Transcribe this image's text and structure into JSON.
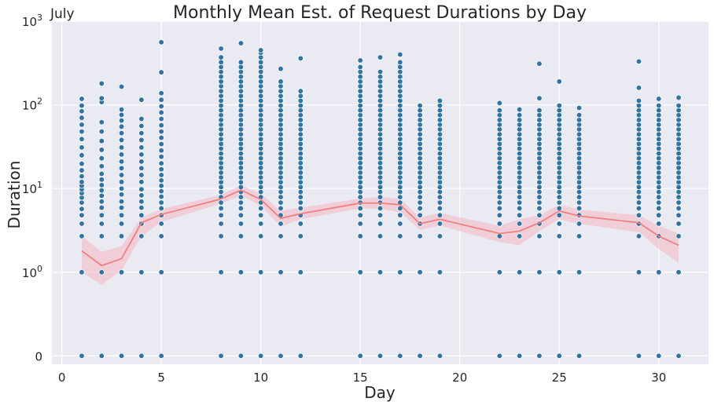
{
  "chart_data": {
    "type": "scatter",
    "title": "Monthly Mean Est. of Request Durations by Day",
    "month_label": "July",
    "xlabel": "Day",
    "ylabel": "Duration",
    "x_scale": "linear",
    "y_scale": "symlog",
    "xlim": [
      -0.5,
      32.5
    ],
    "ylim": [
      -0.1,
      1000
    ],
    "grid": true,
    "colors": {
      "background": "#EAEAF2",
      "grid": "#FFFFFF",
      "points": "#3274A1",
      "point_edge": "#FFFFFF",
      "mean_line": "#F08080",
      "ci_band": "#F4B6C2"
    },
    "x_ticks": [
      {
        "value": 0,
        "label": "0"
      },
      {
        "value": 5,
        "label": "5"
      },
      {
        "value": 10,
        "label": "10"
      },
      {
        "value": 15,
        "label": "15"
      },
      {
        "value": 20,
        "label": "20"
      },
      {
        "value": 25,
        "label": "25"
      },
      {
        "value": 30,
        "label": "30"
      }
    ],
    "y_ticks": [
      {
        "value": 0,
        "base": "0",
        "exp": ""
      },
      {
        "value": 1,
        "base": "10",
        "exp": "0"
      },
      {
        "value": 10,
        "base": "10",
        "exp": "1"
      },
      {
        "value": 100,
        "base": "10",
        "exp": "2"
      },
      {
        "value": 1000,
        "base": "10",
        "exp": "3"
      }
    ],
    "points_by_day": [
      {
        "day": 1,
        "values": [
          0,
          1,
          2.7,
          3.8,
          4.8,
          5.7,
          6.8,
          7.8,
          8.8,
          9.8,
          10.8,
          12,
          14,
          16.5,
          19.8,
          25,
          31,
          39,
          48,
          58,
          70,
          84,
          98,
          118
        ]
      },
      {
        "day": 2,
        "values": [
          0,
          1,
          2.7,
          3.8,
          4.8,
          5.9,
          7,
          8.2,
          9.5,
          11,
          12.8,
          15,
          18.5,
          23,
          29,
          37,
          48,
          62,
          108,
          120,
          180
        ]
      },
      {
        "day": 3,
        "values": [
          0,
          1,
          2.7,
          3.8,
          4.8,
          5.9,
          7,
          8.5,
          10,
          12,
          14.5,
          17.5,
          21,
          25.5,
          31,
          38,
          46,
          55,
          65,
          76,
          88,
          165
        ]
      },
      {
        "day": 4,
        "values": [
          0,
          1,
          2.7,
          3.8,
          4.8,
          5.9,
          7,
          8.3,
          9.8,
          12,
          14.5,
          17.5,
          21,
          25.5,
          31,
          38,
          46,
          56,
          68,
          115
        ]
      },
      {
        "day": 5,
        "values": [
          0,
          1,
          2.7,
          3.8,
          4.8,
          5.8,
          6.8,
          8,
          9.3,
          10.8,
          12.5,
          14.5,
          17,
          20,
          24,
          28.5,
          34,
          40.5,
          48,
          57,
          68,
          81,
          96,
          115,
          138,
          245,
          560
        ]
      },
      {
        "day": 8,
        "values": [
          0,
          1,
          2.7,
          3.8,
          4.8,
          5.8,
          6.8,
          7.9,
          9.1,
          10.4,
          11.9,
          13.6,
          15.5,
          17.7,
          20.2,
          23,
          26.2,
          30,
          34.2,
          39,
          44.5,
          51,
          58,
          66,
          75.5,
          86,
          98,
          112,
          128,
          146,
          167,
          190,
          217,
          248,
          283,
          323,
          370,
          470
        ]
      },
      {
        "day": 9,
        "values": [
          0,
          1,
          2.7,
          3.8,
          4.8,
          5.8,
          6.8,
          7.9,
          9.1,
          10.4,
          11.9,
          13.6,
          15.5,
          17.7,
          20.2,
          23,
          26.2,
          30,
          34.2,
          39,
          44.5,
          51,
          58,
          66,
          75.5,
          86,
          98,
          112,
          128,
          146,
          167,
          190,
          217,
          248,
          283,
          323,
          545
        ]
      },
      {
        "day": 10,
        "values": [
          0,
          1,
          2.7,
          3.8,
          4.8,
          5.8,
          6.8,
          7.9,
          9.1,
          10.4,
          11.9,
          13.6,
          15.5,
          17.7,
          20.2,
          23,
          26.2,
          30,
          34.2,
          39,
          44.5,
          51,
          58,
          66,
          75.5,
          86,
          98,
          112,
          128,
          146,
          167,
          190,
          217,
          248,
          283,
          323,
          370,
          420,
          450
        ]
      },
      {
        "day": 11,
        "values": [
          0,
          1,
          2.7,
          3.8,
          4.8,
          5.8,
          6.8,
          7.9,
          9.1,
          10.4,
          11.9,
          13.6,
          15.5,
          17.7,
          20.2,
          23,
          26.2,
          30,
          34.2,
          39,
          44.5,
          51,
          58,
          66,
          75.5,
          86,
          98,
          112,
          128,
          146,
          167,
          190,
          270
        ]
      },
      {
        "day": 12,
        "values": [
          0,
          1,
          2.7,
          3.8,
          4.8,
          5.8,
          6.8,
          7.9,
          9.1,
          10.4,
          11.9,
          13.6,
          15.5,
          17.7,
          20.2,
          23,
          26.2,
          30,
          34.2,
          39,
          44.5,
          51,
          58,
          66,
          75.5,
          86,
          98,
          112,
          128,
          146,
          360
        ]
      },
      {
        "day": 15,
        "values": [
          0,
          1,
          2.7,
          3.8,
          4.8,
          5.8,
          6.8,
          7.9,
          9.1,
          10.4,
          11.9,
          13.6,
          15.5,
          17.7,
          20.2,
          23,
          26.2,
          30,
          34.2,
          39,
          44.5,
          51,
          58,
          66,
          75.5,
          86,
          98,
          112,
          128,
          146,
          167,
          190,
          217,
          248,
          283,
          340
        ]
      },
      {
        "day": 16,
        "values": [
          0,
          1,
          2.7,
          3.8,
          4.8,
          5.8,
          6.8,
          7.9,
          9.1,
          10.4,
          11.9,
          13.6,
          15.5,
          17.7,
          20.2,
          23,
          26.2,
          30,
          34.2,
          39,
          44.5,
          51,
          58,
          66,
          75.5,
          86,
          98,
          112,
          128,
          146,
          167,
          190,
          217,
          248,
          370
        ]
      },
      {
        "day": 17,
        "values": [
          0,
          1,
          2.7,
          3.8,
          4.8,
          5.8,
          6.8,
          7.9,
          9.1,
          10.4,
          11.9,
          13.6,
          15.5,
          17.7,
          20.2,
          23,
          26.2,
          30,
          34.2,
          39,
          44.5,
          51,
          58,
          66,
          75.5,
          86,
          98,
          112,
          128,
          146,
          167,
          190,
          217,
          248,
          283,
          323,
          400
        ]
      },
      {
        "day": 18,
        "values": [
          0,
          1,
          2.7,
          3.8,
          4.8,
          5.8,
          6.8,
          7.9,
          9.1,
          10.4,
          11.9,
          13.6,
          15.5,
          17.7,
          20.2,
          23,
          26.2,
          30,
          34.2,
          39,
          44.5,
          51,
          58,
          66,
          75.5,
          86,
          98
        ]
      },
      {
        "day": 19,
        "values": [
          0,
          1,
          2.7,
          3.8,
          4.8,
          5.8,
          6.8,
          7.9,
          9.1,
          10.4,
          11.9,
          13.6,
          15.5,
          17.7,
          20.2,
          23,
          26.2,
          30,
          34.2,
          39,
          44.5,
          51,
          58,
          66,
          75.5,
          86,
          98,
          112
        ]
      },
      {
        "day": 22,
        "values": [
          0,
          1,
          2.7,
          3.8,
          4.8,
          5.8,
          6.8,
          7.9,
          9.1,
          10.4,
          11.9,
          13.6,
          15.5,
          17.7,
          20.2,
          23,
          26.2,
          30,
          34.2,
          39,
          44.5,
          51,
          58,
          66,
          75.5,
          86,
          105
        ]
      },
      {
        "day": 23,
        "values": [
          0,
          1,
          2.7,
          3.8,
          4.8,
          5.8,
          6.8,
          7.9,
          9.1,
          10.4,
          11.9,
          13.6,
          15.5,
          17.7,
          20.2,
          23,
          26.2,
          30,
          34.2,
          39,
          44.5,
          51,
          58,
          66,
          75.5,
          88
        ]
      },
      {
        "day": 24,
        "values": [
          0,
          1,
          2.7,
          3.8,
          4.8,
          5.8,
          6.8,
          7.9,
          9.1,
          10.4,
          11.9,
          13.6,
          15.5,
          17.7,
          20.2,
          23,
          26.2,
          30,
          34.2,
          39,
          44.5,
          51,
          58,
          66,
          75.5,
          86,
          120,
          310
        ]
      },
      {
        "day": 25,
        "values": [
          0,
          1,
          2.7,
          3.8,
          4.8,
          5.8,
          6.8,
          7.9,
          9.1,
          10.4,
          11.9,
          13.6,
          15.5,
          17.7,
          20.2,
          23,
          26.2,
          30,
          34.2,
          39,
          44.5,
          51,
          58,
          66,
          75.5,
          86,
          98,
          190
        ]
      },
      {
        "day": 26,
        "values": [
          0,
          1,
          2.7,
          3.8,
          4.8,
          5.8,
          6.8,
          7.9,
          9.1,
          10.4,
          11.9,
          13.6,
          15.5,
          17.7,
          20.2,
          23,
          26.2,
          30,
          34.2,
          39,
          44.5,
          51,
          58,
          66,
          75.5,
          92
        ]
      },
      {
        "day": 29,
        "values": [
          0,
          1,
          2.7,
          3.8,
          4.8,
          5.8,
          6.8,
          7.9,
          9.1,
          10.4,
          11.9,
          13.6,
          15.5,
          17.7,
          20.2,
          23,
          26.2,
          30,
          34.2,
          39,
          44.5,
          51,
          58,
          66,
          75.5,
          86,
          98,
          112,
          160,
          330
        ]
      },
      {
        "day": 30,
        "values": [
          0,
          1,
          2.7,
          3.8,
          4.8,
          5.8,
          6.8,
          7.9,
          9.1,
          10.4,
          11.9,
          13.6,
          15.5,
          17.7,
          20.2,
          23,
          26.2,
          30,
          34.2,
          39,
          44.5,
          51,
          58,
          66,
          75.5,
          86,
          98,
          118
        ]
      },
      {
        "day": 31,
        "values": [
          0,
          1,
          2.7,
          3.8,
          4.8,
          5.8,
          6.8,
          7.9,
          9.1,
          10.4,
          11.9,
          13.6,
          15.5,
          17.7,
          20.2,
          23,
          26.2,
          30,
          34.2,
          39,
          44.5,
          51,
          58,
          66,
          75.5,
          86,
          98,
          122
        ]
      }
    ],
    "mean_series": {
      "x": [
        1,
        2,
        3,
        4,
        5,
        8,
        9,
        10,
        11,
        12,
        15,
        16,
        17,
        18,
        19,
        22,
        23,
        24,
        25,
        26,
        29,
        30,
        31
      ],
      "y": [
        1.8,
        1.2,
        1.45,
        3.9,
        4.9,
        7.5,
        9.6,
        7.4,
        4.4,
        5.0,
        6.7,
        6.7,
        6.4,
        3.8,
        4.3,
        2.9,
        3.1,
        3.9,
        5.4,
        4.7,
        3.9,
        2.7,
        2.1
      ],
      "ci_low": [
        1.0,
        0.85,
        1.05,
        2.7,
        4.0,
        6.6,
        8.3,
        6.2,
        3.5,
        4.3,
        5.8,
        5.7,
        5.2,
        3.2,
        3.6,
        2.3,
        2.1,
        3.1,
        4.3,
        3.8,
        3.0,
        1.9,
        1.3
      ],
      "ci_high": [
        2.7,
        1.75,
        2.05,
        4.5,
        5.7,
        8.4,
        10.9,
        8.7,
        5.4,
        5.9,
        7.6,
        7.9,
        7.6,
        4.5,
        5.1,
        3.6,
        4.3,
        4.8,
        6.4,
        5.6,
        4.8,
        3.6,
        2.9
      ]
    }
  }
}
